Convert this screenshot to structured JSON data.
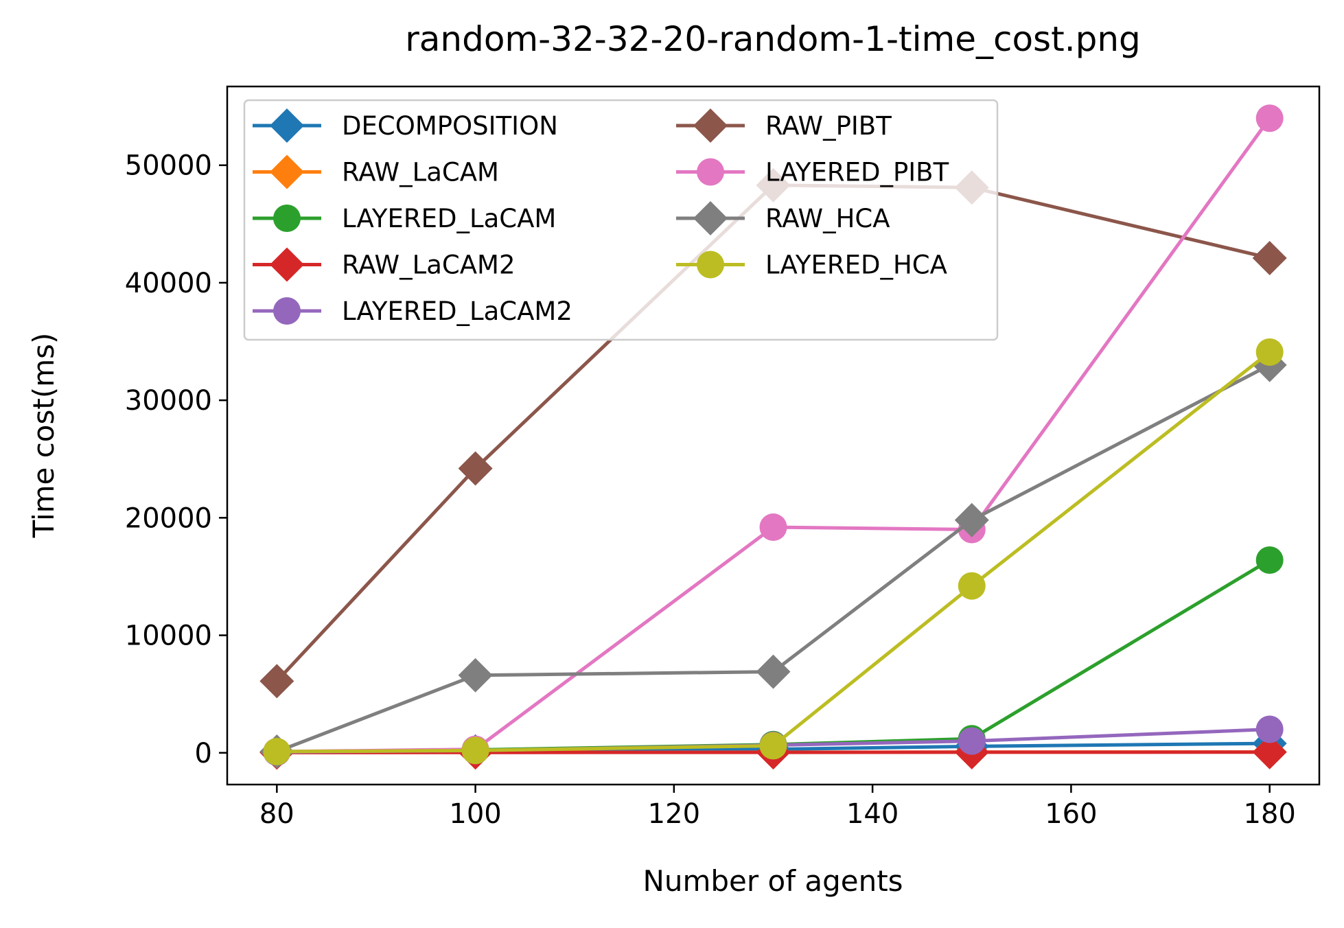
{
  "chart_data": {
    "type": "line",
    "title": "random-32-32-20-random-1-time_cost.png",
    "xlabel": "Number of agents",
    "ylabel": "Time cost(ms)",
    "x": [
      80,
      100,
      130,
      150,
      180
    ],
    "xlim": [
      75,
      185
    ],
    "ylim": [
      -2700,
      56700
    ],
    "xticks": [
      80,
      100,
      120,
      140,
      160,
      180
    ],
    "yticks": [
      0,
      10000,
      20000,
      30000,
      40000,
      50000
    ],
    "grid": false,
    "legend_placement": "top-left",
    "legend_columns": 2,
    "series": [
      {
        "name": "DECOMPOSITION",
        "color": "#1f77b4",
        "marker": "diamond",
        "values": [
          50,
          120,
          300,
          550,
          800
        ]
      },
      {
        "name": "RAW_LaCAM",
        "color": "#ff7f0e",
        "marker": "diamond",
        "values": [
          30,
          40,
          50,
          60,
          70
        ]
      },
      {
        "name": "LAYERED_LaCAM",
        "color": "#2ca02c",
        "marker": "circle",
        "values": [
          80,
          250,
          700,
          1200,
          16400
        ]
      },
      {
        "name": "RAW_LaCAM2",
        "color": "#d62728",
        "marker": "diamond",
        "values": [
          20,
          30,
          40,
          50,
          60
        ]
      },
      {
        "name": "LAYERED_LaCAM2",
        "color": "#9467bd",
        "marker": "circle",
        "values": [
          60,
          200,
          650,
          1000,
          2000
        ]
      },
      {
        "name": "RAW_PIBT",
        "color": "#8c564b",
        "marker": "diamond",
        "values": [
          6100,
          24200,
          48300,
          48100,
          42100
        ]
      },
      {
        "name": "LAYERED_PIBT",
        "color": "#e377c2",
        "marker": "circle",
        "values": [
          100,
          300,
          19200,
          19000,
          54000
        ]
      },
      {
        "name": "RAW_HCA",
        "color": "#7f7f7f",
        "marker": "diamond",
        "values": [
          100,
          6600,
          6900,
          19800,
          33000
        ]
      },
      {
        "name": "LAYERED_HCA",
        "color": "#bcbd22",
        "marker": "circle",
        "values": [
          100,
          200,
          600,
          14200,
          34100
        ]
      }
    ]
  }
}
